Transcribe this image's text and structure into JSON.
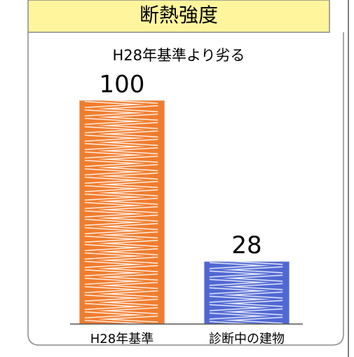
{
  "chart_data": {
    "type": "bar",
    "title": "断熱強度",
    "subtitle": "H28年基準より劣る",
    "categories": [
      "H28年基準",
      "診断中の建物"
    ],
    "values": [
      100,
      28
    ],
    "colors": [
      "#f07d2e",
      "#5068d2"
    ]
  }
}
